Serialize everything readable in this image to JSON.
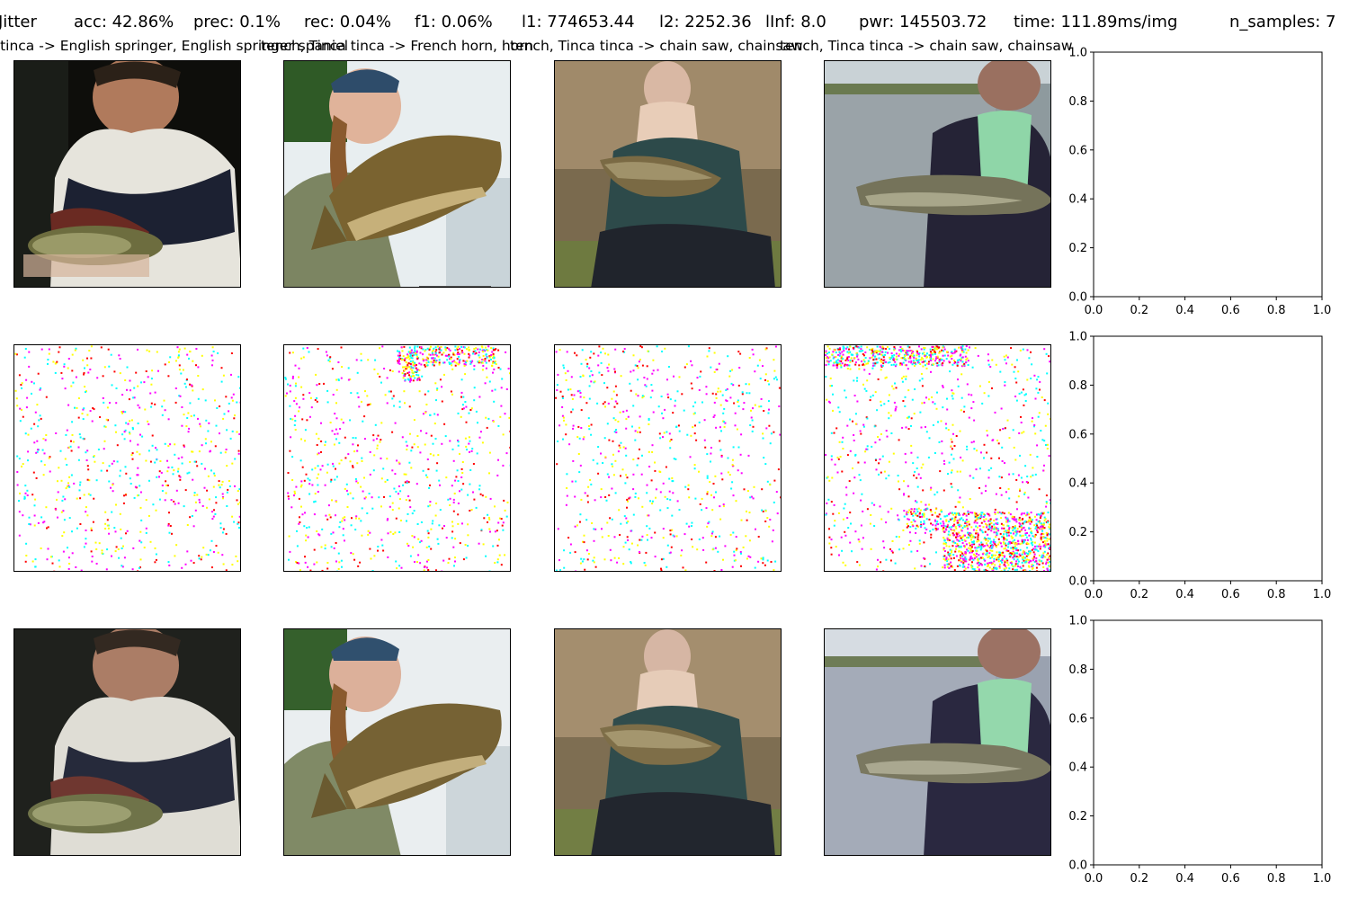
{
  "header": {
    "method": "Jitter",
    "acc": "acc: 42.86%",
    "prec": "prec: 0.1%",
    "rec": "rec: 0.04%",
    "f1": "f1: 0.06%",
    "l1": "l1: 774653.44",
    "l2": "l2: 2252.36",
    "linf": "lInf: 8.0",
    "pwr": "pwr: 145503.72",
    "time": "time: 111.89ms/img",
    "n_samples": "n_samples: 7"
  },
  "subtitles": [
    "Tinca tinca -> English springer, English springer spaniel",
    "tench, Tinca tinca -> French horn, horn",
    "tench, Tinca tinca -> chain saw, chainsaw",
    "tench, Tinca tinca -> chain saw, chainsaw"
  ],
  "rows": [
    {
      "name": "original-images",
      "images": [
        "tench held by man in dark jacket",
        "tench held by smiling man in cap",
        "tench held by crouching young man",
        "barbel held by man by river"
      ]
    },
    {
      "name": "perturbation-maps",
      "images": [
        "sparse noise perturbation",
        "sparse noise perturbation with top cluster",
        "sparse noise perturbation",
        "noise perturbation with clusters"
      ]
    },
    {
      "name": "adversarial-images",
      "images": [
        "perturbed tench image",
        "perturbed tench image",
        "perturbed tench image",
        "perturbed barbel image"
      ]
    }
  ],
  "chart_data": [
    {
      "type": "scatter",
      "x": [],
      "y": [],
      "xlim": [
        0.0,
        1.0
      ],
      "ylim": [
        0.0,
        1.0
      ],
      "xticks": [
        "0.0",
        "0.2",
        "0.4",
        "0.6",
        "0.8",
        "1.0"
      ],
      "yticks": [
        "0.0",
        "0.2",
        "0.4",
        "0.6",
        "0.8",
        "1.0"
      ],
      "title": "",
      "xlabel": "",
      "ylabel": ""
    },
    {
      "type": "scatter",
      "x": [],
      "y": [],
      "xlim": [
        0.0,
        1.0
      ],
      "ylim": [
        0.0,
        1.0
      ],
      "xticks": [
        "0.0",
        "0.2",
        "0.4",
        "0.6",
        "0.8",
        "1.0"
      ],
      "yticks": [
        "0.0",
        "0.2",
        "0.4",
        "0.6",
        "0.8",
        "1.0"
      ],
      "title": "",
      "xlabel": "",
      "ylabel": ""
    },
    {
      "type": "scatter",
      "x": [],
      "y": [],
      "xlim": [
        0.0,
        1.0
      ],
      "ylim": [
        0.0,
        1.0
      ],
      "xticks": [
        "0.0",
        "0.2",
        "0.4",
        "0.6",
        "0.8",
        "1.0"
      ],
      "yticks": [
        "0.0",
        "0.2",
        "0.4",
        "0.6",
        "0.8",
        "1.0"
      ],
      "title": "",
      "xlabel": "",
      "ylabel": ""
    }
  ]
}
